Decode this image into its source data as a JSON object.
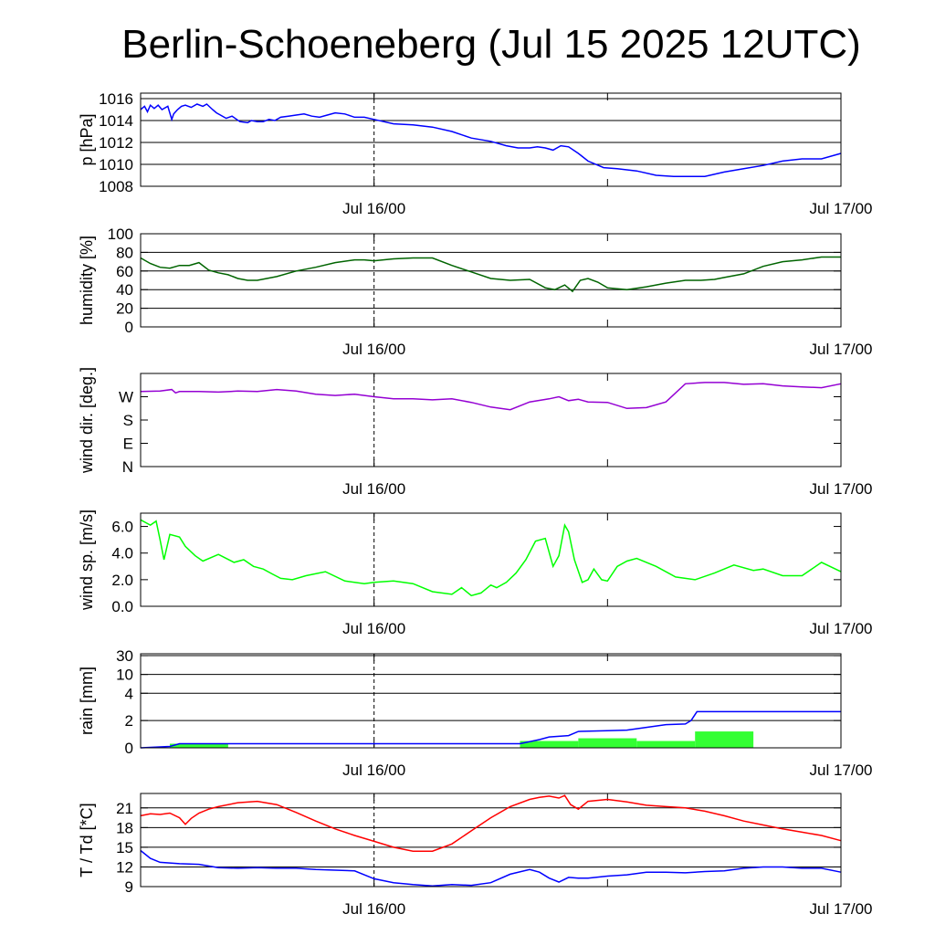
{
  "title": "Berlin-Schoeneberg (Jul 15 2025 12UTC)",
  "x_tick_labels": [
    "Jul 16/00",
    "Jul 17/00"
  ],
  "colors": {
    "pressure": "#0000ff",
    "humidity": "#006400",
    "wind_dir": "#9400d3",
    "wind_speed": "#00ff00",
    "rain_total": "#0000ff",
    "rain_bars": "#33ff33",
    "temperature": "#ff0000",
    "dewpoint": "#0000ff"
  },
  "chart_data": [
    {
      "id": "pressure",
      "type": "line",
      "ylabel": "p [hPa]",
      "ylim": [
        1008,
        1016.5
      ],
      "yticks": [
        1008,
        1010,
        1012,
        1014,
        1016
      ],
      "ytick_labels": [
        "1008",
        "1010",
        "1012",
        "1014",
        "1016"
      ],
      "xlim": [
        0,
        36
      ],
      "x_unit": "hours since Jul 15 12UTC",
      "grid": true,
      "series": [
        {
          "color_key": "pressure",
          "x": [
            0,
            0.2,
            0.35,
            0.5,
            0.7,
            0.9,
            1.1,
            1.4,
            1.6,
            1.7,
            1.9,
            2.1,
            2.3,
            2.6,
            2.9,
            3.2,
            3.4,
            3.7,
            3.9,
            4.1,
            4.4,
            4.7,
            5.1,
            5.5,
            5.7,
            6.0,
            6.3,
            6.6,
            6.9,
            7.2,
            7.6,
            8,
            8.4,
            8.8,
            9.2,
            9.6,
            10,
            10.5,
            11,
            11.5,
            12,
            13,
            14,
            15,
            16,
            17,
            18,
            18.8,
            19.4,
            20,
            20.4,
            20.8,
            21.2,
            21.6,
            22.0,
            22.5,
            23.0,
            23.8,
            24.5,
            25.5,
            26.5,
            27.4,
            28,
            29,
            30,
            31,
            32,
            33,
            34,
            35,
            36
          ],
          "y": [
            1015.0,
            1015.3,
            1014.8,
            1015.4,
            1015.1,
            1015.4,
            1015.0,
            1015.3,
            1014.1,
            1014.6,
            1015.0,
            1015.3,
            1015.4,
            1015.2,
            1015.5,
            1015.3,
            1015.5,
            1015.0,
            1014.7,
            1014.5,
            1014.2,
            1014.4,
            1013.9,
            1013.8,
            1014.0,
            1013.9,
            1013.9,
            1014.1,
            1014.0,
            1014.3,
            1014.4,
            1014.5,
            1014.6,
            1014.4,
            1014.3,
            1014.5,
            1014.7,
            1014.6,
            1014.3,
            1014.3,
            1014.1,
            1013.7,
            1013.6,
            1013.4,
            1013.0,
            1012.4,
            1012.1,
            1011.7,
            1011.5,
            1011.5,
            1011.6,
            1011.5,
            1011.3,
            1011.7,
            1011.6,
            1011.0,
            1010.3,
            1009.7,
            1009.6,
            1009.4,
            1009.0,
            1008.9,
            1008.9,
            1008.9,
            1009.3,
            1009.6,
            1009.9,
            1010.3,
            1010.5,
            1010.5,
            1011.0
          ]
        }
      ]
    },
    {
      "id": "humidity",
      "type": "line",
      "ylabel": "humidity [%]",
      "ylim": [
        0,
        100
      ],
      "yticks": [
        0,
        20,
        40,
        60,
        80,
        100
      ],
      "ytick_labels": [
        "0",
        "20",
        "40",
        "60",
        "80",
        "100"
      ],
      "xlim": [
        0,
        36
      ],
      "grid": true,
      "series": [
        {
          "color_key": "humidity",
          "x": [
            0,
            0.5,
            1,
            1.5,
            2,
            2.5,
            3,
            3.5,
            4,
            4.5,
            5,
            5.5,
            6,
            7,
            8,
            9,
            10,
            11,
            11.5,
            12,
            13,
            14,
            15,
            16,
            17,
            18,
            19,
            20,
            20.8,
            21.3,
            21.8,
            22.2,
            22.6,
            23.0,
            23.5,
            24,
            25,
            26,
            27,
            28,
            28.8,
            29.5,
            30,
            31,
            32,
            33,
            34,
            35,
            36
          ],
          "y": [
            74,
            68,
            64,
            63,
            66,
            66,
            69,
            61,
            58,
            56,
            52,
            50,
            50,
            54,
            60,
            64,
            69,
            72,
            72,
            71,
            73,
            74,
            74,
            66,
            59,
            52,
            50,
            51,
            42,
            40,
            45,
            38,
            50,
            52,
            48,
            42,
            40,
            43,
            47,
            50,
            50,
            51,
            53,
            57,
            65,
            70,
            72,
            75,
            75
          ]
        }
      ]
    },
    {
      "id": "wind_direction",
      "type": "line",
      "ylabel": "wind dir. [deg.]",
      "ylim": [
        0,
        360
      ],
      "yticks": [
        0,
        90,
        180,
        270
      ],
      "ytick_labels": [
        "N",
        "E",
        "S",
        "W"
      ],
      "xlim": [
        0,
        36
      ],
      "grid": false,
      "series": [
        {
          "color_key": "wind_dir",
          "x": [
            0,
            1,
            1.6,
            1.8,
            2,
            3,
            4,
            5,
            6,
            7,
            8,
            9,
            10,
            11,
            12,
            13,
            14,
            15,
            16,
            17,
            18,
            19,
            20,
            21,
            21.5,
            22,
            22.5,
            23,
            24,
            25,
            26,
            27,
            28,
            29,
            30,
            31,
            32,
            33,
            34,
            35,
            36
          ],
          "y": [
            290,
            292,
            298,
            285,
            290,
            290,
            288,
            292,
            290,
            298,
            292,
            280,
            275,
            280,
            270,
            262,
            262,
            258,
            262,
            248,
            230,
            220,
            250,
            262,
            270,
            255,
            260,
            250,
            248,
            225,
            228,
            250,
            320,
            325,
            325,
            318,
            320,
            312,
            308,
            305,
            320
          ]
        }
      ]
    },
    {
      "id": "wind_speed",
      "type": "line",
      "ylabel": "wind sp. [m/s]",
      "ylim": [
        0,
        7
      ],
      "yticks": [
        0,
        2,
        4,
        6
      ],
      "ytick_labels": [
        "0.0",
        "2.0",
        "4.0",
        "6.0"
      ],
      "xlim": [
        0,
        36
      ],
      "grid": false,
      "series": [
        {
          "color_key": "wind_speed",
          "x": [
            0,
            0.5,
            0.8,
            1.0,
            1.2,
            1.5,
            2.0,
            2.3,
            2.8,
            3.2,
            4,
            4.8,
            5.3,
            5.8,
            6.3,
            6.8,
            7.2,
            7.8,
            8.5,
            9.5,
            10.5,
            11.5,
            12,
            13,
            14,
            15,
            16,
            16.5,
            17,
            17.5,
            18,
            18.3,
            18.8,
            19.3,
            19.8,
            20.3,
            20.8,
            21.2,
            21.5,
            21.8,
            22.0,
            22.3,
            22.7,
            23.0,
            23.3,
            23.7,
            24.0,
            24.5,
            25.0,
            25.5,
            26.5,
            27.5,
            28,
            28.5,
            29.5,
            30.5,
            31.5,
            32,
            33,
            34,
            35,
            36
          ],
          "y": [
            6.5,
            6.1,
            6.4,
            5.0,
            3.5,
            5.4,
            5.2,
            4.5,
            3.8,
            3.4,
            3.9,
            3.3,
            3.5,
            3.0,
            2.8,
            2.4,
            2.1,
            2.0,
            2.3,
            2.6,
            1.9,
            1.7,
            1.8,
            1.9,
            1.7,
            1.1,
            0.9,
            1.4,
            0.8,
            1.0,
            1.6,
            1.4,
            1.8,
            2.5,
            3.5,
            4.9,
            5.1,
            3.0,
            3.8,
            6.1,
            5.6,
            3.5,
            1.8,
            2.0,
            2.8,
            2.0,
            1.9,
            3.0,
            3.4,
            3.6,
            3.0,
            2.2,
            2.1,
            2.0,
            2.5,
            3.1,
            2.7,
            2.8,
            2.3,
            2.3,
            3.3,
            2.6
          ]
        }
      ]
    },
    {
      "id": "rain",
      "type": "bar+line",
      "ylabel": "rain [mm]",
      "scale": "log-like",
      "yticks": [
        0,
        2,
        4,
        10,
        30
      ],
      "ytick_labels": [
        "0",
        "2",
        "4",
        "10",
        "30"
      ],
      "xlim": [
        0,
        36
      ],
      "grid": true,
      "bars": {
        "color_key": "rain_bars",
        "x_start": [
          1.5,
          19.5,
          22.5,
          25.5,
          28.5
        ],
        "x_end": [
          4.5,
          22.5,
          25.5,
          28.5,
          31.5
        ],
        "values": [
          0.3,
          0.5,
          0.7,
          0.5,
          1.2
        ]
      },
      "series": [
        {
          "color_key": "rain_total",
          "x": [
            0,
            1.5,
            2.0,
            19.5,
            20.5,
            21.0,
            22.0,
            22.5,
            24.0,
            25.0,
            26.0,
            27.0,
            28.0,
            28.3,
            28.6,
            30,
            32,
            36
          ],
          "y": [
            0,
            0.1,
            0.3,
            0.3,
            0.6,
            0.8,
            0.9,
            1.2,
            1.25,
            1.3,
            1.5,
            1.7,
            1.75,
            2.0,
            2.65,
            2.65,
            2.65,
            2.65
          ]
        }
      ]
    },
    {
      "id": "temperature",
      "type": "line",
      "ylabel": "T / Td [*C]",
      "ylim": [
        9,
        23.2
      ],
      "yticks": [
        9,
        12,
        15,
        18,
        21
      ],
      "ytick_labels": [
        "9",
        "12",
        "15",
        "18",
        "21"
      ],
      "xlim": [
        0,
        36
      ],
      "grid": true,
      "series": [
        {
          "color_key": "temperature",
          "x": [
            0,
            0.5,
            1,
            1.5,
            2,
            2.3,
            2.6,
            3,
            3.5,
            4,
            5,
            6,
            7,
            8,
            9,
            10,
            11,
            12,
            13,
            14,
            15,
            16,
            17,
            18,
            19,
            20,
            20.5,
            21,
            21.5,
            21.8,
            22.1,
            22.5,
            23,
            24,
            25,
            26,
            27,
            28,
            29,
            30,
            31,
            32,
            33,
            34,
            35,
            36
          ],
          "y": [
            19.8,
            20.1,
            20.0,
            20.2,
            19.5,
            18.5,
            19.4,
            20.2,
            20.8,
            21.2,
            21.8,
            22.0,
            21.5,
            20.3,
            19.0,
            17.8,
            16.8,
            15.9,
            15.0,
            14.4,
            14.4,
            15.5,
            17.5,
            19.5,
            21.2,
            22.3,
            22.6,
            22.8,
            22.5,
            22.9,
            21.5,
            20.8,
            22.0,
            22.3,
            21.9,
            21.4,
            21.2,
            21.0,
            20.5,
            19.8,
            19.0,
            18.4,
            17.8,
            17.3,
            16.8,
            16.0
          ]
        },
        {
          "color_key": "dewpoint",
          "x": [
            0,
            0.5,
            1,
            2,
            3,
            4,
            5,
            6,
            7,
            8,
            9,
            10,
            11,
            12,
            13,
            14,
            15,
            16,
            17,
            18,
            19,
            20,
            20.5,
            21,
            21.5,
            22,
            22.5,
            23,
            24,
            25,
            26,
            27,
            28,
            29,
            30,
            31,
            32,
            33,
            34,
            35,
            36
          ],
          "y": [
            14.5,
            13.3,
            12.7,
            12.5,
            12.4,
            11.9,
            11.8,
            11.9,
            11.8,
            11.8,
            11.6,
            11.5,
            11.4,
            10.2,
            9.6,
            9.3,
            9.1,
            9.3,
            9.2,
            9.6,
            10.9,
            11.6,
            11.2,
            10.3,
            9.7,
            10.4,
            10.3,
            10.3,
            10.6,
            10.8,
            11.2,
            11.2,
            11.1,
            11.3,
            11.4,
            11.8,
            12.0,
            12.0,
            11.8,
            11.8,
            11.2
          ]
        }
      ]
    }
  ]
}
